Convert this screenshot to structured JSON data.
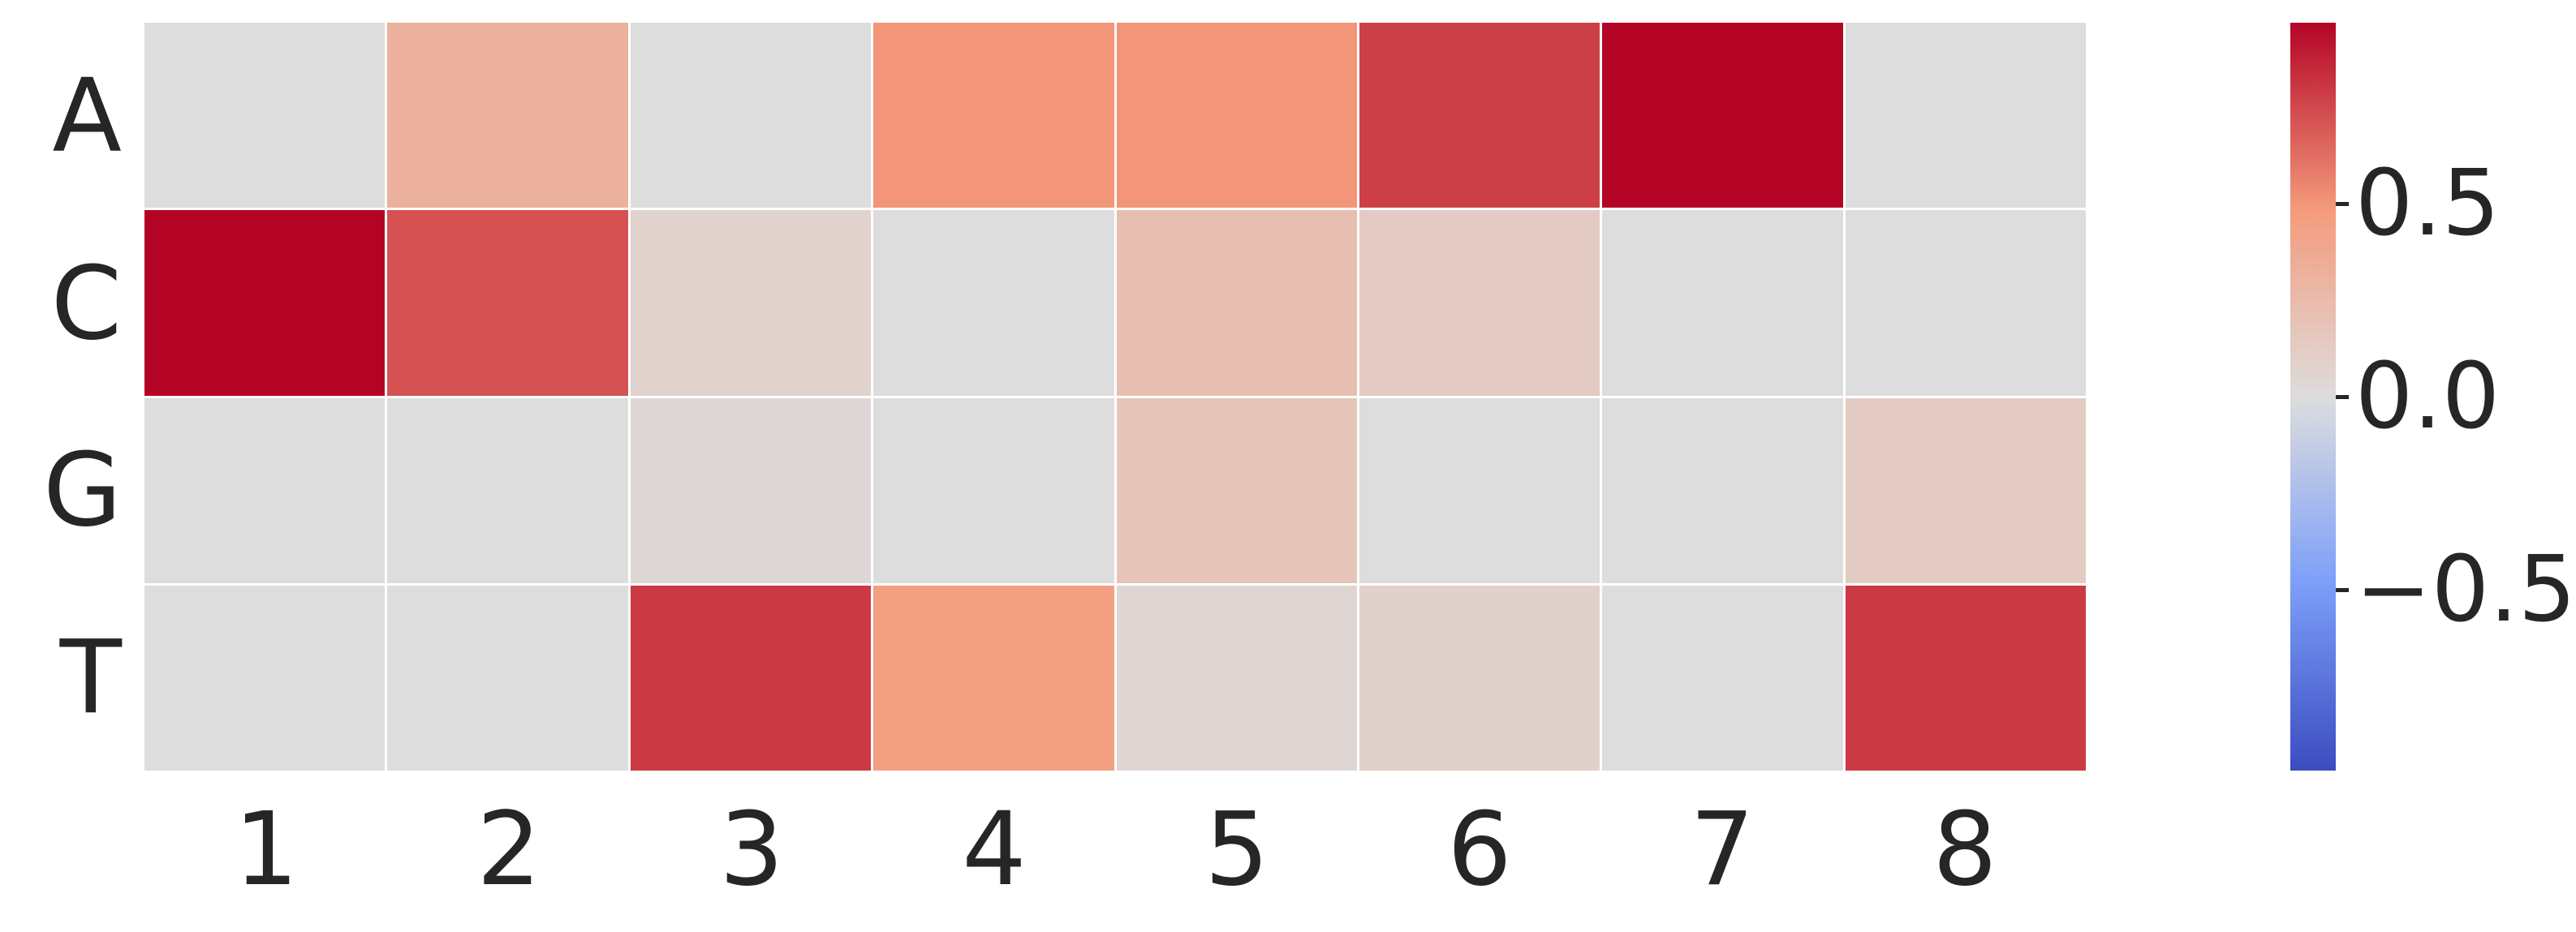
{
  "chart_data": {
    "type": "heatmap",
    "title": "",
    "xlabel": "",
    "ylabel": "",
    "rows": [
      "A",
      "C",
      "G",
      "T"
    ],
    "columns": [
      "1",
      "2",
      "3",
      "4",
      "5",
      "6",
      "7",
      "8"
    ],
    "values": [
      [
        0.0,
        0.32,
        0.0,
        0.5,
        0.5,
        0.78,
        0.97,
        0.0
      ],
      [
        0.97,
        0.72,
        0.08,
        0.0,
        0.22,
        0.13,
        0.0,
        0.0
      ],
      [
        0.0,
        0.0,
        0.04,
        0.0,
        0.18,
        0.0,
        0.0,
        0.13
      ],
      [
        0.0,
        0.0,
        0.8,
        0.45,
        0.05,
        0.09,
        0.0,
        0.8
      ]
    ],
    "colormap": "coolwarm",
    "vmin": -0.97,
    "vmax": 0.97,
    "grid_line_color": "#ffffff",
    "text_color": "#262626",
    "colorbar": {
      "position": "right",
      "ticks": [
        0.5,
        0.0,
        -0.5
      ],
      "tick_labels": [
        "0.5",
        "0.0",
        "−0.5"
      ]
    }
  }
}
